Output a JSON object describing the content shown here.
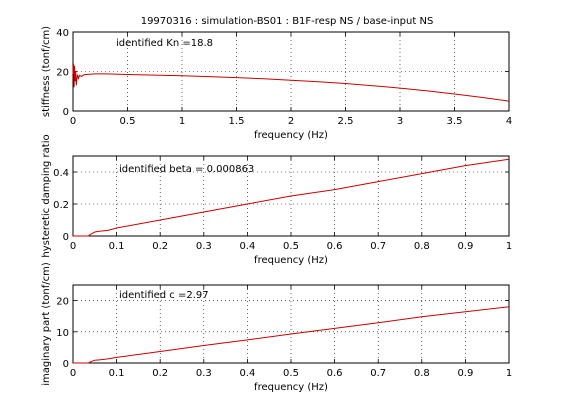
{
  "figure": {
    "title": "19970316 : simulation-BS01 : B1F-resp NS   / base-input NS",
    "background": "#ffffff",
    "line_color": "#cc0000"
  },
  "chart_data": [
    {
      "type": "line",
      "xlabel": "frequency (Hz)",
      "ylabel": "stiffness (tonf/cm)",
      "xlim": [
        0,
        4
      ],
      "ylim": [
        0,
        40
      ],
      "xticks": [
        0,
        0.5,
        1,
        1.5,
        2,
        2.5,
        3,
        3.5,
        4
      ],
      "xtick_labels": [
        "0",
        "0.5",
        "1",
        "1.5",
        "2",
        "2.5",
        "3",
        "3.5",
        "4"
      ],
      "yticks": [
        0,
        20,
        40
      ],
      "ytick_labels": [
        "0",
        "20",
        "40"
      ],
      "grid": true,
      "annotation": "identified Kn =18.8",
      "series": [
        {
          "x": [
            0,
            0.005,
            0.01,
            0.015,
            0.02,
            0.025,
            0.03,
            0.04,
            0.05,
            0.06,
            0.08,
            0.1,
            0.15,
            0.2,
            0.3,
            0.5,
            0.75,
            1.0,
            1.25,
            1.5,
            1.75,
            2.0,
            2.25,
            2.5,
            2.75,
            3.0,
            3.25,
            3.5,
            3.75,
            4.0
          ],
          "y": [
            18.8,
            24,
            12,
            23,
            15,
            20,
            13,
            18.5,
            16.5,
            18,
            17.5,
            18.4,
            18.6,
            18.8,
            18.8,
            18.5,
            18.2,
            17.8,
            17.4,
            16.9,
            16.3,
            15.6,
            14.8,
            13.9,
            12.8,
            11.6,
            10.2,
            8.6,
            6.9,
            5.0
          ]
        }
      ]
    },
    {
      "type": "line",
      "xlabel": "frequency (Hz)",
      "ylabel": "hysteretic damping ratio",
      "xlim": [
        0,
        1
      ],
      "ylim": [
        0,
        0.5
      ],
      "xticks": [
        0,
        0.1,
        0.2,
        0.3,
        0.4,
        0.5,
        0.6,
        0.7,
        0.8,
        0.9,
        1
      ],
      "xtick_labels": [
        "0",
        "0.1",
        "0.2",
        "0.3",
        "0.4",
        "0.5",
        "0.6",
        "0.7",
        "0.8",
        "0.9",
        "1"
      ],
      "yticks": [
        0,
        0.2,
        0.4
      ],
      "ytick_labels": [
        "0",
        "0.2",
        "0.4"
      ],
      "grid": true,
      "annotation": "identified beta = 0.000863",
      "series": [
        {
          "x": [
            0,
            0.02,
            0.03,
            0.035,
            0.04,
            0.05,
            0.06,
            0.08,
            0.1,
            0.2,
            0.3,
            0.4,
            0.5,
            0.6,
            0.7,
            0.8,
            0.9,
            1.0
          ],
          "y": [
            0,
            0,
            0,
            -0.005,
            0.01,
            0.025,
            0.03,
            0.035,
            0.05,
            0.1,
            0.15,
            0.2,
            0.25,
            0.29,
            0.34,
            0.39,
            0.44,
            0.48
          ]
        }
      ]
    },
    {
      "type": "line",
      "xlabel": "frequency (Hz)",
      "ylabel": "imaginary part (tonf/cm)",
      "xlim": [
        0,
        1
      ],
      "ylim": [
        0,
        25
      ],
      "xticks": [
        0,
        0.1,
        0.2,
        0.3,
        0.4,
        0.5,
        0.6,
        0.7,
        0.8,
        0.9,
        1
      ],
      "xtick_labels": [
        "0",
        "0.1",
        "0.2",
        "0.3",
        "0.4",
        "0.5",
        "0.6",
        "0.7",
        "0.8",
        "0.9",
        "1"
      ],
      "yticks": [
        0,
        10,
        20
      ],
      "ytick_labels": [
        "0",
        "10",
        "20"
      ],
      "grid": true,
      "annotation": "identified c =2.97",
      "series": [
        {
          "x": [
            0,
            0.02,
            0.03,
            0.035,
            0.04,
            0.05,
            0.06,
            0.08,
            0.1,
            0.2,
            0.3,
            0.4,
            0.5,
            0.6,
            0.7,
            0.8,
            0.9,
            1.0
          ],
          "y": [
            0,
            0,
            0,
            -0.2,
            0.4,
            0.9,
            1.0,
            1.3,
            1.8,
            3.7,
            5.6,
            7.4,
            9.3,
            11.1,
            12.9,
            14.8,
            16.4,
            18.0
          ]
        }
      ]
    }
  ]
}
